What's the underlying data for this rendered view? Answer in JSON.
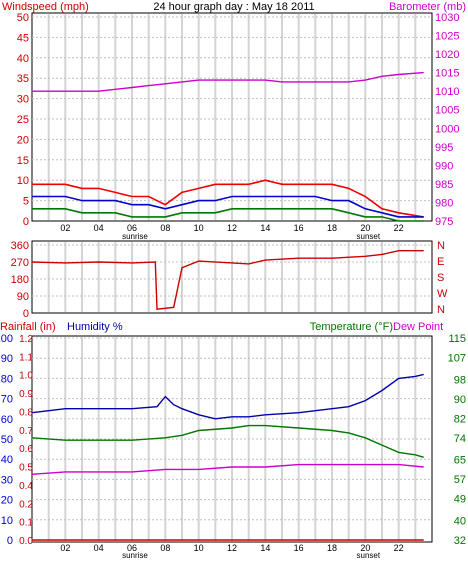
{
  "chart_data": [
    {
      "type": "line",
      "title": "24 hour graph day : May 18 2011",
      "left_axis_label": "Windspeed (mph)",
      "right_axis_label": "Barometer (mb)",
      "x_ticks": [
        "02",
        "04",
        "06",
        "08",
        "10",
        "12",
        "14",
        "16",
        "18",
        "20",
        "22"
      ],
      "x_annotations": [
        {
          "hour": 6,
          "label": "sunrise"
        },
        {
          "hour": 20,
          "label": "sunset"
        }
      ],
      "y_left": {
        "min": 0,
        "max": 50,
        "ticks": [
          0,
          5,
          10,
          15,
          20,
          25,
          30,
          35,
          40,
          45,
          50
        ]
      },
      "y_right": {
        "min": 975,
        "max": 1030,
        "ticks": [
          975,
          980,
          985,
          990,
          995,
          1000,
          1005,
          1010,
          1015,
          1020,
          1025,
          1030
        ]
      },
      "grid": true,
      "colors": {
        "left_axis": "#cc0000",
        "right_axis": "#cc00cc",
        "gust": "#ee0000",
        "average": "#0000cc",
        "speed": "#007700",
        "barometer": "#cc00cc"
      },
      "series": [
        {
          "axis": "right",
          "x": [
            0,
            1,
            2,
            3,
            4,
            5,
            6,
            7,
            8,
            9,
            10,
            11,
            12,
            13,
            14,
            15,
            16,
            17,
            18,
            19,
            20,
            21,
            22,
            23.5
          ],
          "values": [
            1010,
            1010,
            1010,
            1010,
            1010,
            1010.5,
            1011,
            1011.5,
            1012,
            1012.5,
            1013,
            1013,
            1013,
            1013,
            1013,
            1012.5,
            1012.5,
            1012.5,
            1012.5,
            1012.5,
            1013,
            1014,
            1014.5,
            1015
          ]
        },
        {
          "axis": "left",
          "x": [
            0,
            1,
            2,
            3,
            4,
            5,
            6,
            7,
            8,
            9,
            10,
            11,
            12,
            13,
            14,
            15,
            16,
            17,
            18,
            19,
            20,
            21,
            22,
            23.5
          ],
          "values": [
            9,
            9,
            9,
            8,
            8,
            7,
            6,
            6,
            4,
            7,
            8,
            9,
            9,
            9,
            10,
            9,
            9,
            9,
            9,
            8,
            6,
            3,
            2,
            1
          ]
        },
        {
          "axis": "left",
          "x": [
            0,
            1,
            2,
            3,
            4,
            5,
            6,
            7,
            8,
            9,
            10,
            11,
            12,
            13,
            14,
            15,
            16,
            17,
            18,
            19,
            20,
            21,
            22,
            23.5
          ],
          "values": [
            6,
            6,
            6,
            5,
            5,
            5,
            4,
            4,
            3,
            4,
            5,
            5,
            6,
            6,
            6,
            6,
            6,
            6,
            5,
            5,
            3,
            2,
            1,
            1
          ]
        },
        {
          "axis": "left",
          "x": [
            0,
            1,
            2,
            3,
            4,
            5,
            6,
            7,
            8,
            9,
            10,
            11,
            12,
            13,
            14,
            15,
            16,
            17,
            18,
            19,
            20,
            21,
            22,
            23.5
          ],
          "values": [
            3,
            3,
            3,
            2,
            2,
            2,
            1,
            1,
            1,
            2,
            2,
            2,
            3,
            3,
            3,
            3,
            3,
            3,
            3,
            2,
            1,
            1,
            0,
            0
          ]
        }
      ]
    },
    {
      "type": "line",
      "y_left": {
        "min": 0,
        "max": 360,
        "ticks": [
          0,
          90,
          180,
          270,
          360
        ]
      },
      "right_axis_labels": [
        "N",
        "W",
        "S",
        "E",
        "N"
      ],
      "x_ticks": [
        "02",
        "04",
        "06",
        "08",
        "10",
        "12",
        "14",
        "16",
        "18",
        "20",
        "22"
      ],
      "x_annotations": [
        {
          "hour": 6,
          "label": "sunrise"
        },
        {
          "hour": 20,
          "label": "sunset"
        }
      ],
      "grid": true,
      "colors": {
        "direction": "#cc0000",
        "axis": "#cc0000"
      },
      "series": [
        {
          "x": [
            0,
            2,
            4,
            6,
            7.4,
            7.5,
            8.5,
            9,
            10,
            12,
            13,
            14,
            16,
            18,
            20,
            21,
            22,
            23.5
          ],
          "values": [
            270,
            265,
            270,
            265,
            270,
            20,
            30,
            240,
            275,
            265,
            260,
            280,
            290,
            290,
            300,
            310,
            330,
            330
          ]
        }
      ]
    },
    {
      "type": "line",
      "left_axis_label_rain": "Rainfall (in)",
      "left_axis_label_humidity": "Humidity %",
      "right_axis_label_temp": "Temperature (°F)",
      "right_axis_label_dew": "Dew Point",
      "x_ticks": [
        "02",
        "04",
        "06",
        "08",
        "10",
        "12",
        "14",
        "16",
        "18",
        "20",
        "22"
      ],
      "x_annotations": [
        {
          "hour": 6,
          "label": "sunrise"
        },
        {
          "hour": 20,
          "label": "sunset"
        }
      ],
      "y_rain": {
        "min": 0,
        "max": 1.2,
        "ticks": [
          "0.0",
          "0.1",
          "0.2",
          "0.4",
          "0.5",
          "0.6",
          "0.7",
          "0.8",
          "0.9",
          "1.0",
          "1.1",
          "1.2"
        ]
      },
      "y_humidity": {
        "min": 0,
        "max": 100,
        "ticks": [
          0,
          10,
          20,
          30,
          40,
          50,
          60,
          70,
          80,
          90,
          100
        ]
      },
      "y_temp": {
        "min": 32,
        "max": 115,
        "ticks": [
          32,
          40,
          49,
          57,
          65,
          74,
          82,
          90,
          98,
          107,
          115
        ]
      },
      "grid": true,
      "colors": {
        "rain": "#cc0000",
        "humidity": "#0000aa",
        "temperature": "#007700",
        "dew_point": "#cc00cc",
        "humidity_axis": "#0000cc",
        "temp_axis": "#007700"
      },
      "series": [
        {
          "name": "Humidity %",
          "axis": "humidity",
          "x": [
            0,
            2,
            4,
            6,
            7.5,
            8,
            8.5,
            9,
            10,
            11,
            12,
            13,
            14,
            16,
            18,
            19,
            20,
            21,
            22,
            23,
            23.5
          ],
          "values": [
            63,
            65,
            65,
            65,
            66,
            71,
            67,
            65,
            62,
            60,
            61,
            61,
            62,
            63,
            65,
            66,
            69,
            74,
            80,
            81,
            82
          ]
        },
        {
          "name": "Temperature (°F)",
          "axis": "temp",
          "x": [
            0,
            2,
            4,
            6,
            8,
            9,
            10,
            12,
            13,
            14,
            16,
            18,
            19,
            20,
            21,
            22,
            23,
            23.5
          ],
          "values": [
            74,
            73,
            73,
            73,
            74,
            75,
            77,
            78,
            79,
            79,
            78,
            77,
            76,
            74,
            71,
            68,
            67,
            66
          ]
        },
        {
          "name": "Dew Point",
          "axis": "temp",
          "x": [
            0,
            2,
            4,
            6,
            8,
            10,
            12,
            14,
            16,
            18,
            20,
            22,
            23.5
          ],
          "values": [
            59,
            60,
            60,
            60,
            61,
            61,
            62,
            62,
            63,
            63,
            63,
            63,
            62
          ]
        },
        {
          "name": "Rainfall (in)",
          "axis": "rain",
          "x": [
            0,
            23.5
          ],
          "values": [
            0,
            0
          ]
        }
      ]
    }
  ]
}
